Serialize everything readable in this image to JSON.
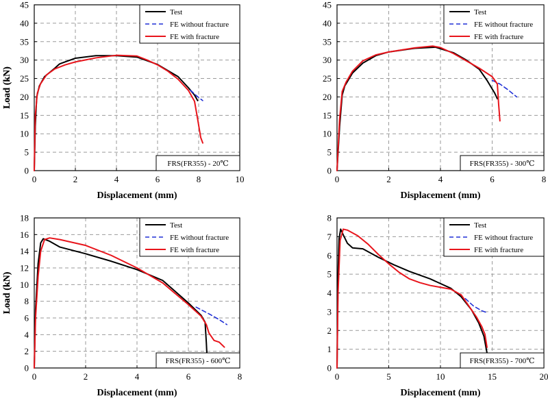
{
  "colors": {
    "test": "#000000",
    "fe_without": "#1f2fd6",
    "fe_with": "#e8141b",
    "grid": "#9a9a9a"
  },
  "chart_data": [
    {
      "type": "line",
      "tag": "FRS(FR355) - 20℃",
      "xlabel": "Displacement (mm)",
      "ylabel": "Load (kN)",
      "xlim": [
        0,
        10
      ],
      "ylim": [
        0,
        45
      ],
      "xticks": [
        0,
        2,
        4,
        6,
        8,
        10
      ],
      "yticks": [
        0,
        5,
        10,
        15,
        20,
        25,
        30,
        35,
        40,
        45
      ],
      "grid": true,
      "legend": "top-right",
      "series": [
        {
          "name": "Test",
          "style": "solid",
          "points": [
            [
              0,
              0
            ],
            [
              0.05,
              12
            ],
            [
              0.12,
              20
            ],
            [
              0.25,
              23
            ],
            [
              0.5,
              25.5
            ],
            [
              1.0,
              27.8
            ],
            [
              1.2,
              28.8
            ],
            [
              1.25,
              29
            ],
            [
              2,
              30.5
            ],
            [
              3,
              31.2
            ],
            [
              4,
              31.2
            ],
            [
              5,
              30.8
            ],
            [
              6,
              28.8
            ],
            [
              7,
              25.5
            ],
            [
              7.5,
              22.5
            ],
            [
              7.8,
              20.5
            ],
            [
              7.95,
              19
            ]
          ]
        },
        {
          "name": "FE without fracture",
          "style": "dashed",
          "points": [
            [
              7.6,
              21.8
            ],
            [
              7.9,
              20.3
            ],
            [
              8.2,
              19
            ]
          ]
        },
        {
          "name": "FE with fracture",
          "style": "solid",
          "points": [
            [
              0,
              0
            ],
            [
              0.05,
              15
            ],
            [
              0.15,
              21
            ],
            [
              0.3,
              23.5
            ],
            [
              0.6,
              26
            ],
            [
              1.0,
              27.6
            ],
            [
              1.5,
              28.7
            ],
            [
              2,
              29.5
            ],
            [
              3,
              30.6
            ],
            [
              4,
              31.3
            ],
            [
              5,
              31.1
            ],
            [
              5.5,
              30
            ],
            [
              6,
              28.7
            ],
            [
              6.5,
              27
            ],
            [
              7,
              24.8
            ],
            [
              7.5,
              21.8
            ],
            [
              7.8,
              18.8
            ],
            [
              7.95,
              14
            ],
            [
              8.1,
              9
            ],
            [
              8.2,
              7.5
            ]
          ]
        }
      ]
    },
    {
      "type": "line",
      "tag": "FRS(FR355) - 300℃",
      "xlabel": "Displacement (mm)",
      "ylabel": "Load (kN)",
      "xlim": [
        0,
        8
      ],
      "ylim": [
        0,
        45
      ],
      "xticks": [
        0,
        2,
        4,
        6,
        8
      ],
      "yticks": [
        0,
        5,
        10,
        15,
        20,
        25,
        30,
        35,
        40,
        45
      ],
      "grid": true,
      "legend": "top-right",
      "series": [
        {
          "name": "Test",
          "style": "solid",
          "points": [
            [
              0,
              0
            ],
            [
              0.1,
              12
            ],
            [
              0.2,
              20.5
            ],
            [
              0.3,
              23
            ],
            [
              0.6,
              26.5
            ],
            [
              1,
              29.2
            ],
            [
              1.5,
              31.2
            ],
            [
              2,
              32.2
            ],
            [
              3,
              33.2
            ],
            [
              3.8,
              33.5
            ],
            [
              4.5,
              32
            ],
            [
              5,
              30
            ],
            [
              5.5,
              27.5
            ],
            [
              5.8,
              24.5
            ],
            [
              6.1,
              21
            ],
            [
              6.2,
              19.5
            ]
          ]
        },
        {
          "name": "FE without fracture",
          "style": "dashed",
          "points": [
            [
              6.0,
              24.5
            ],
            [
              6.3,
              23.5
            ],
            [
              6.6,
              22
            ],
            [
              6.95,
              20
            ]
          ]
        },
        {
          "name": "FE with fracture",
          "style": "solid",
          "points": [
            [
              0,
              0
            ],
            [
              0.1,
              14
            ],
            [
              0.2,
              21.5
            ],
            [
              0.35,
              24
            ],
            [
              0.6,
              27
            ],
            [
              1,
              29.8
            ],
            [
              1.5,
              31.4
            ],
            [
              2,
              32.2
            ],
            [
              3,
              33.3
            ],
            [
              3.7,
              33.8
            ],
            [
              4,
              33.4
            ],
            [
              4.5,
              31.8
            ],
            [
              5,
              29.8
            ],
            [
              5.5,
              27.8
            ],
            [
              6,
              25.5
            ],
            [
              6.2,
              23.5
            ],
            [
              6.25,
              18
            ],
            [
              6.3,
              13.5
            ]
          ]
        }
      ]
    },
    {
      "type": "line",
      "tag": "FRS(FR355) - 600℃",
      "xlabel": "Displacement (mm)",
      "ylabel": "Load (kN)",
      "xlim": [
        0,
        8
      ],
      "ylim": [
        0,
        18
      ],
      "xticks": [
        0,
        2,
        4,
        6,
        8
      ],
      "yticks": [
        0,
        2,
        4,
        6,
        8,
        10,
        12,
        14,
        16,
        18
      ],
      "grid": true,
      "legend": "top-right",
      "series": [
        {
          "name": "Test",
          "style": "solid",
          "points": [
            [
              0,
              0
            ],
            [
              0.05,
              7
            ],
            [
              0.15,
              12.5
            ],
            [
              0.25,
              15
            ],
            [
              0.35,
              15.5
            ],
            [
              0.6,
              15.2
            ],
            [
              1,
              14.5
            ],
            [
              2,
              13.7
            ],
            [
              3,
              12.8
            ],
            [
              4,
              11.8
            ],
            [
              5,
              10.5
            ],
            [
              6,
              7.8
            ],
            [
              6.5,
              6.3
            ],
            [
              6.65,
              5.5
            ],
            [
              6.7,
              3
            ],
            [
              6.72,
              1.7
            ]
          ]
        },
        {
          "name": "FE without fracture",
          "style": "dashed",
          "points": [
            [
              6.3,
              7.3
            ],
            [
              6.8,
              6.5
            ],
            [
              7.2,
              5.8
            ],
            [
              7.5,
              5.2
            ]
          ]
        },
        {
          "name": "FE with fracture",
          "style": "solid",
          "points": [
            [
              0,
              0
            ],
            [
              0.05,
              6
            ],
            [
              0.15,
              11
            ],
            [
              0.25,
              14
            ],
            [
              0.4,
              15.4
            ],
            [
              0.6,
              15.6
            ],
            [
              1,
              15.4
            ],
            [
              2,
              14.7
            ],
            [
              3,
              13.5
            ],
            [
              4,
              12
            ],
            [
              5,
              10.2
            ],
            [
              6,
              7.6
            ],
            [
              6.5,
              6.2
            ],
            [
              6.7,
              5.2
            ],
            [
              6.8,
              4.2
            ],
            [
              7,
              3.3
            ],
            [
              7.2,
              3.1
            ],
            [
              7.4,
              2.5
            ]
          ]
        }
      ]
    },
    {
      "type": "line",
      "tag": "FRS(FR355) - 700℃",
      "xlabel": "Displacement (mm)",
      "ylabel": "Load (kN)",
      "xlim": [
        0,
        20
      ],
      "ylim": [
        0,
        8
      ],
      "xticks": [
        0,
        5,
        10,
        15,
        20
      ],
      "yticks": [
        0,
        1,
        2,
        3,
        4,
        5,
        6,
        7,
        8
      ],
      "grid": true,
      "legend": "top-right",
      "series": [
        {
          "name": "Test",
          "style": "solid",
          "points": [
            [
              0,
              0
            ],
            [
              0.1,
              5
            ],
            [
              0.2,
              6.9
            ],
            [
              0.35,
              7.4
            ],
            [
              0.6,
              7.1
            ],
            [
              1,
              6.65
            ],
            [
              1.5,
              6.4
            ],
            [
              2.5,
              6.35
            ],
            [
              4,
              5.9
            ],
            [
              5.5,
              5.5
            ],
            [
              7,
              5.15
            ],
            [
              9,
              4.75
            ],
            [
              11,
              4.25
            ],
            [
              12,
              3.8
            ],
            [
              13,
              3.1
            ],
            [
              13.7,
              2.4
            ],
            [
              14.2,
              1.7
            ],
            [
              14.5,
              0.8
            ]
          ]
        },
        {
          "name": "FE without fracture",
          "style": "dashed",
          "points": [
            [
              12.4,
              3.7
            ],
            [
              13.2,
              3.3
            ],
            [
              14.0,
              3.05
            ],
            [
              14.5,
              2.95
            ]
          ]
        },
        {
          "name": "FE with fracture",
          "style": "solid",
          "points": [
            [
              0,
              0
            ],
            [
              0.1,
              4
            ],
            [
              0.3,
              6.8
            ],
            [
              0.6,
              7.4
            ],
            [
              1,
              7.35
            ],
            [
              2,
              7.05
            ],
            [
              3,
              6.6
            ],
            [
              4,
              6.05
            ],
            [
              5,
              5.55
            ],
            [
              6,
              5.1
            ],
            [
              7,
              4.75
            ],
            [
              8,
              4.55
            ],
            [
              9,
              4.4
            ],
            [
              10,
              4.3
            ],
            [
              11,
              4.2
            ],
            [
              12,
              3.9
            ],
            [
              12.5,
              3.5
            ],
            [
              13,
              3.1
            ],
            [
              13.5,
              2.7
            ],
            [
              14,
              2.2
            ],
            [
              14.3,
              1.8
            ],
            [
              14.5,
              1.1
            ]
          ]
        }
      ]
    }
  ]
}
